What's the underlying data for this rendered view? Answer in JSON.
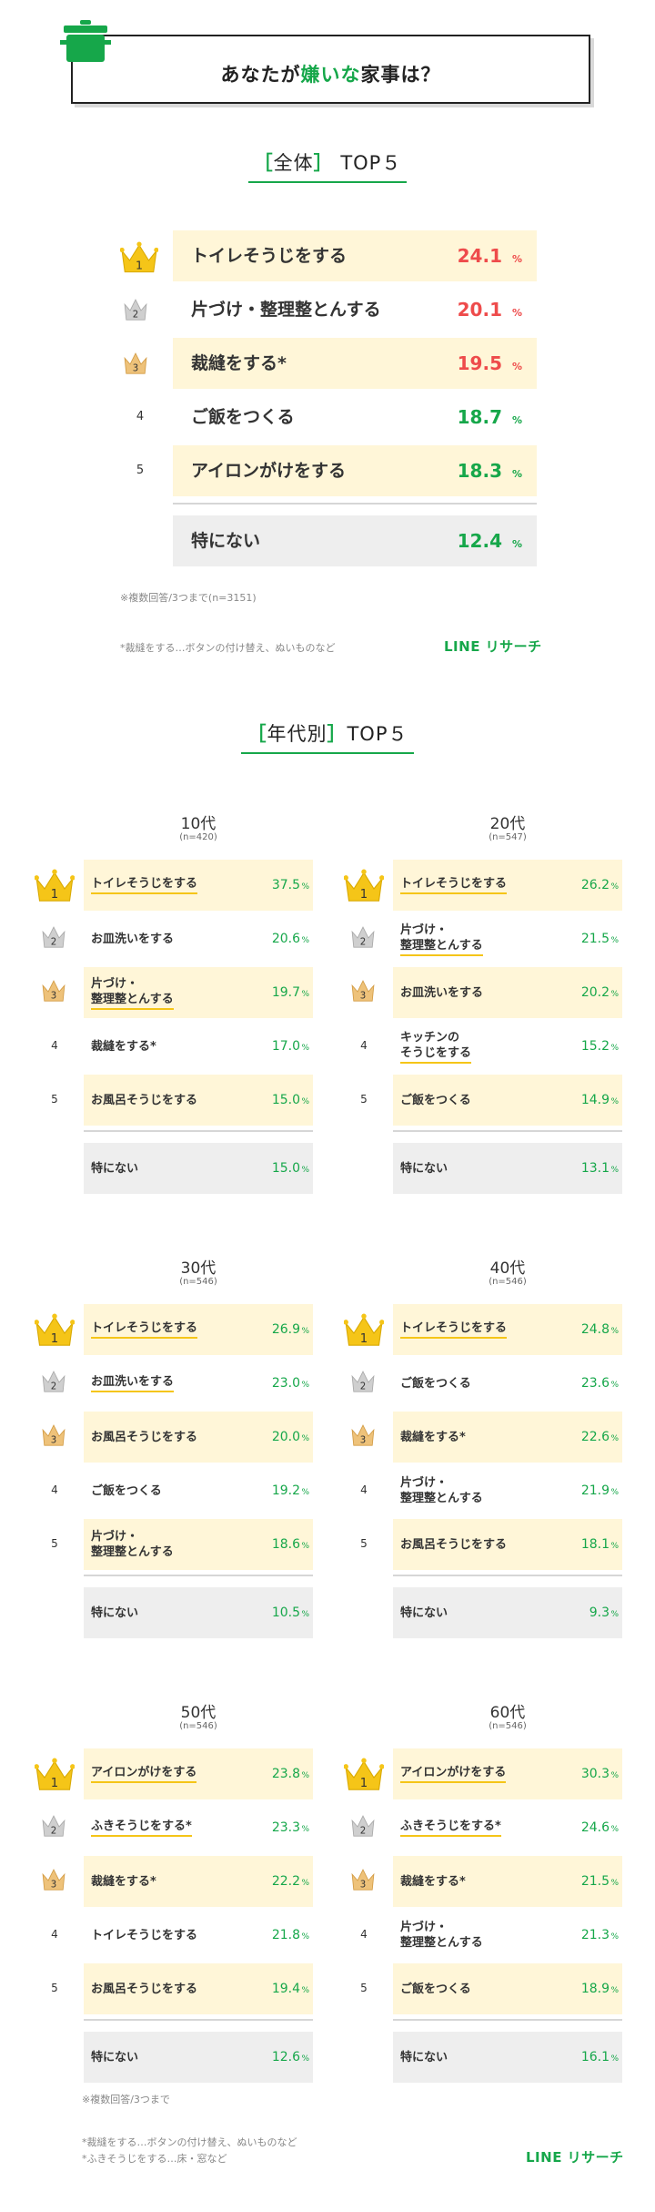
{
  "header": {
    "title_before": "あなたが",
    "title_highlight": "嫌いな",
    "title_after": "家事は？"
  },
  "overall": {
    "heading_open": "［",
    "heading_main": "全体",
    "heading_close": "］",
    "heading_suffix": "TOP５",
    "rows": [
      {
        "rank": "1",
        "label": "トイレそうじをする",
        "value": "24.1",
        "unit": "%"
      },
      {
        "rank": "2",
        "label": "片づけ・整理整とんする",
        "value": "20.1",
        "unit": "%"
      },
      {
        "rank": "3",
        "label": "裁縫をする*",
        "value": "19.5",
        "unit": "%"
      },
      {
        "rank": "4",
        "label": "ご飯をつくる",
        "value": "18.7",
        "unit": "%"
      },
      {
        "rank": "5",
        "label": "アイロンがけをする",
        "value": "18.3",
        "unit": "%"
      }
    ],
    "none": {
      "label": "特にない",
      "value": "12.4",
      "unit": "%"
    },
    "note_multi": "※複数回答/3つまで(n=3151)",
    "note_sewing": "*裁縫をする…ボタンの付け替え、ぬいものなど",
    "logo": "LINE リサーチ"
  },
  "by_age": {
    "heading_open": "［",
    "heading_main": "年代別",
    "heading_close": "］",
    "heading_suffix": "TOP５",
    "panels": [
      {
        "age": "10代",
        "n": "(n=420)",
        "rows": [
          {
            "rank": "1",
            "label": "トイレそうじをする",
            "value": "37.5",
            "unit": "%"
          },
          {
            "rank": "2",
            "label": "お皿洗いをする",
            "value": "20.6",
            "unit": "%"
          },
          {
            "rank": "3",
            "label": "片づけ・\n整理整とんする",
            "value": "19.7",
            "unit": "%"
          },
          {
            "rank": "4",
            "label": "裁縫をする*",
            "value": "17.0",
            "unit": "%"
          },
          {
            "rank": "5",
            "label": "お風呂そうじをする",
            "value": "15.0",
            "unit": "%"
          }
        ],
        "none": {
          "label": "特にない",
          "value": "15.0",
          "unit": "%"
        }
      },
      {
        "age": "20代",
        "n": "(n=547)",
        "rows": [
          {
            "rank": "1",
            "label": "トイレそうじをする",
            "value": "26.2",
            "unit": "%"
          },
          {
            "rank": "2",
            "label": "片づけ・\n整理整とんする",
            "value": "21.5",
            "unit": "%"
          },
          {
            "rank": "3",
            "label": "お皿洗いをする",
            "value": "20.2",
            "unit": "%"
          },
          {
            "rank": "4",
            "label": "キッチンの\nそうじをする",
            "value": "15.2",
            "unit": "%"
          },
          {
            "rank": "5",
            "label": "ご飯をつくる",
            "value": "14.9",
            "unit": "%"
          }
        ],
        "none": {
          "label": "特にない",
          "value": "13.1",
          "unit": "%"
        }
      },
      {
        "age": "30代",
        "n": "(n=546)",
        "rows": [
          {
            "rank": "1",
            "label": "トイレそうじをする",
            "value": "26.9",
            "unit": "%"
          },
          {
            "rank": "2",
            "label": "お皿洗いをする",
            "value": "23.0",
            "unit": "%"
          },
          {
            "rank": "3",
            "label": "お風呂そうじをする",
            "value": "20.0",
            "unit": "%"
          },
          {
            "rank": "4",
            "label": "ご飯をつくる",
            "value": "19.2",
            "unit": "%"
          },
          {
            "rank": "5",
            "label": "片づけ・\n整理整とんする",
            "value": "18.6",
            "unit": "%"
          }
        ],
        "none": {
          "label": "特にない",
          "value": "10.5",
          "unit": "%"
        }
      },
      {
        "age": "40代",
        "n": "(n=546)",
        "rows": [
          {
            "rank": "1",
            "label": "トイレそうじをする",
            "value": "24.8",
            "unit": "%"
          },
          {
            "rank": "2",
            "label": "ご飯をつくる",
            "value": "23.6",
            "unit": "%"
          },
          {
            "rank": "3",
            "label": "裁縫をする*",
            "value": "22.6",
            "unit": "%"
          },
          {
            "rank": "4",
            "label": "片づけ・\n整理整とんする",
            "value": "21.9",
            "unit": "%"
          },
          {
            "rank": "5",
            "label": "お風呂そうじをする",
            "value": "18.1",
            "unit": "%"
          }
        ],
        "none": {
          "label": "特にない",
          "value": "9.3",
          "unit": "%"
        }
      },
      {
        "age": "50代",
        "n": "(n=546)",
        "rows": [
          {
            "rank": "1",
            "label": "アイロンがけをする",
            "value": "23.8",
            "unit": "%"
          },
          {
            "rank": "2",
            "label": "ふきそうじをする*",
            "value": "23.3",
            "unit": "%"
          },
          {
            "rank": "3",
            "label": "裁縫をする*",
            "value": "22.2",
            "unit": "%"
          },
          {
            "rank": "4",
            "label": "トイレそうじをする",
            "value": "21.8",
            "unit": "%"
          },
          {
            "rank": "5",
            "label": "お風呂そうじをする",
            "value": "19.4",
            "unit": "%"
          }
        ],
        "none": {
          "label": "特にない",
          "value": "12.6",
          "unit": "%"
        }
      },
      {
        "age": "60代",
        "n": "(n=546)",
        "rows": [
          {
            "rank": "1",
            "label": "アイロンがけをする",
            "value": "30.3",
            "unit": "%"
          },
          {
            "rank": "2",
            "label": "ふきそうじをする*",
            "value": "24.6",
            "unit": "%"
          },
          {
            "rank": "3",
            "label": "裁縫をする*",
            "value": "21.5",
            "unit": "%"
          },
          {
            "rank": "4",
            "label": "片づけ・\n整理整とんする",
            "value": "21.3",
            "unit": "%"
          },
          {
            "rank": "5",
            "label": "ご飯をつくる",
            "value": "18.9",
            "unit": "%"
          }
        ],
        "none": {
          "label": "特にない",
          "value": "16.1",
          "unit": "%"
        }
      }
    ],
    "note_multi": "※複数回答/3つまで",
    "note_sewing": "*裁縫をする…ボタンの付け替え、ぬいものなど",
    "note_wiping": "*ふきそうじをする…床・窓など",
    "logo": "LINE リサーチ"
  },
  "colors": {
    "accent_green": "#16a74a",
    "top3_red": "#ee4b4b",
    "highlight_yellow": "#fff6d8",
    "gold": "#f5c518",
    "silver": "#bdbdbd",
    "bronze": "#e6b25c"
  },
  "chart_data": [
    {
      "type": "table",
      "title": "あなたが嫌いな家事は？",
      "subtitle": "全体 TOP5",
      "categories": [
        "トイレそうじをする",
        "片づけ・整理整とんする",
        "裁縫をする*",
        "ご飯をつくる",
        "アイロンがけをする",
        "特にない"
      ],
      "values": [
        24.1,
        20.1,
        19.5,
        18.7,
        18.3,
        12.4
      ],
      "unit": "%"
    },
    {
      "type": "table",
      "subtitle": "年代別 TOP5",
      "series": [
        {
          "name": "10代",
          "categories": [
            "トイレそうじをする",
            "お皿洗いをする",
            "片づけ・整理整とんする",
            "裁縫をする*",
            "お風呂そうじをする",
            "特にない"
          ],
          "values": [
            37.5,
            20.6,
            19.7,
            17.0,
            15.0,
            15.0
          ]
        },
        {
          "name": "20代",
          "categories": [
            "トイレそうじをする",
            "片づけ・整理整とんする",
            "お皿洗いをする",
            "キッチンのそうじをする",
            "ご飯をつくる",
            "特にない"
          ],
          "values": [
            26.2,
            21.5,
            20.2,
            15.2,
            14.9,
            13.1
          ]
        },
        {
          "name": "30代",
          "categories": [
            "トイレそうじをする",
            "お皿洗いをする",
            "お風呂そうじをする",
            "ご飯をつくる",
            "片づけ・整理整とんする",
            "特にない"
          ],
          "values": [
            26.9,
            23.0,
            20.0,
            19.2,
            18.6,
            10.5
          ]
        },
        {
          "name": "40代",
          "categories": [
            "トイレそうじをする",
            "ご飯をつくる",
            "裁縫をする*",
            "片づけ・整理整とんする",
            "お風呂そうじをする",
            "特にない"
          ],
          "values": [
            24.8,
            23.6,
            22.6,
            21.9,
            18.1,
            9.3
          ]
        },
        {
          "name": "50代",
          "categories": [
            "アイロンがけをする",
            "ふきそうじをする*",
            "裁縫をする*",
            "トイレそうじをする",
            "お風呂そうじをする",
            "特にない"
          ],
          "values": [
            23.8,
            23.3,
            22.2,
            21.8,
            19.4,
            12.6
          ]
        },
        {
          "name": "60代",
          "categories": [
            "アイロンがけをする",
            "ふきそうじをする*",
            "裁縫をする*",
            "片づけ・整理整とんする",
            "ご飯をつくる",
            "特にない"
          ],
          "values": [
            30.3,
            24.6,
            21.5,
            21.3,
            18.9,
            16.1
          ]
        }
      ],
      "unit": "%"
    }
  ]
}
